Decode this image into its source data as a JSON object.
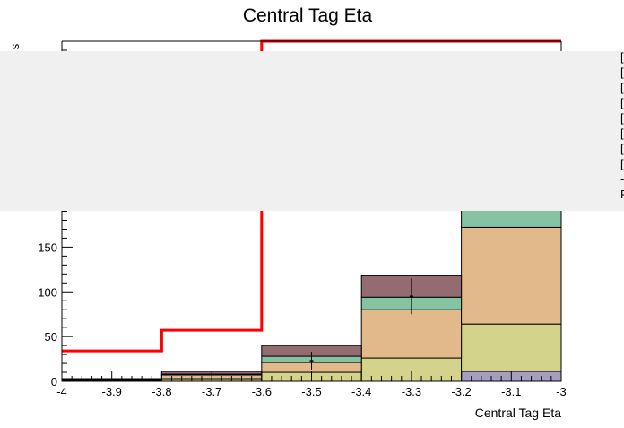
{
  "chart_data": {
    "type": "bar",
    "title": "Central Tag Eta",
    "xlabel": "Central Tag Eta",
    "ylabel_fragment": "s",
    "xlim": [
      -4,
      -3
    ],
    "ylim": [
      0,
      380
    ],
    "x_ticks": [
      -4,
      -3.9,
      -3.8,
      -3.7,
      -3.6,
      -3.5,
      -3.4,
      -3.3,
      -3.2,
      -3.1,
      -3
    ],
    "x_tick_labels": [
      "-4",
      "-3.9",
      "-3.8",
      "-3.7",
      "-3.6",
      "-3.5",
      "-3.4",
      "-3.3",
      "-3.2",
      "-3.1",
      "-3"
    ],
    "y_ticks": [
      0,
      50,
      100,
      150
    ],
    "y_tick_labels": [
      "0",
      "50",
      "100",
      "150"
    ],
    "bin_edges": [
      -4,
      -3.8,
      -3.6,
      -3.4,
      -3.2,
      -3
    ],
    "stack": [
      {
        "color": "#a59ebf",
        "values": [
          0,
          0,
          0,
          0,
          11
        ]
      },
      {
        "color": "#d3d38b",
        "values": [
          1,
          3,
          10,
          26,
          53
        ]
      },
      {
        "color": "#e2b98a",
        "values": [
          1,
          4,
          11,
          54,
          108
        ]
      },
      {
        "color": "#86c3a3",
        "values": [
          0,
          1,
          7,
          14,
          20
        ]
      },
      {
        "color": "#956b72",
        "values": [
          1,
          3,
          12,
          24,
          0
        ]
      }
    ],
    "signal_line": {
      "color": "#ff0000",
      "values": [
        34,
        57,
        380,
        380,
        380
      ]
    },
    "data_points": [
      {
        "x": -3.5,
        "y": 23,
        "err": 10
      },
      {
        "x": -3.3,
        "y": 95,
        "err": 20
      }
    ],
    "legend_position": "right",
    "legend_markers": [
      "[",
      "[",
      "[",
      "[",
      "[",
      "[",
      "[",
      "[",
      "-",
      "F"
    ],
    "overlay_panel_color": "#f0f0f0"
  }
}
